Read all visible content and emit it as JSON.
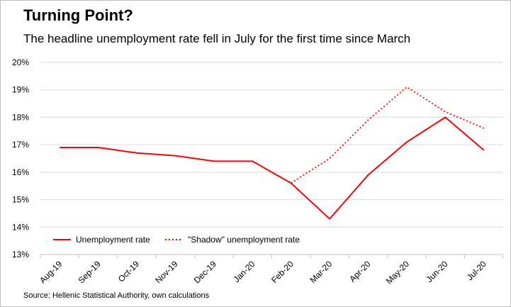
{
  "header": {
    "title": "Turning Point?",
    "subtitle": "The headline unemployment rate fell in July for the first time since March"
  },
  "footer": {
    "source": "Source: Hellenic Statistical Authority, own calculations"
  },
  "colors": {
    "series": "#ff0000",
    "grid": "#d9d9d9",
    "axis": "#bfbfbf"
  },
  "chart_data": {
    "type": "line",
    "title": "Turning Point?",
    "subtitle": "The headline unemployment rate fell in July for the first time since March",
    "categories": [
      "Aug-19",
      "Sep-19",
      "Oct-19",
      "Nov-19",
      "Dec-19",
      "Jan-20",
      "Feb-20",
      "Mar-20",
      "Apr-20",
      "May-20",
      "Jun-20",
      "Jul-20"
    ],
    "series": [
      {
        "name": "Unemployment rate",
        "style": "solid",
        "values": [
          16.9,
          16.9,
          16.7,
          16.6,
          16.4,
          16.4,
          15.6,
          14.3,
          15.9,
          17.1,
          18.0,
          16.8
        ]
      },
      {
        "name": "\"Shadow\" unemployment rate",
        "style": "dotted",
        "values": [
          null,
          null,
          null,
          null,
          null,
          null,
          15.6,
          16.5,
          17.9,
          19.1,
          18.2,
          17.6
        ]
      }
    ],
    "ylim": [
      13,
      20
    ],
    "yticks": [
      "13%",
      "14%",
      "15%",
      "16%",
      "17%",
      "18%",
      "19%",
      "20%"
    ],
    "grid": true,
    "legend_position": "bottom-left",
    "source": "Source: Hellenic Statistical Authority, own calculations"
  }
}
